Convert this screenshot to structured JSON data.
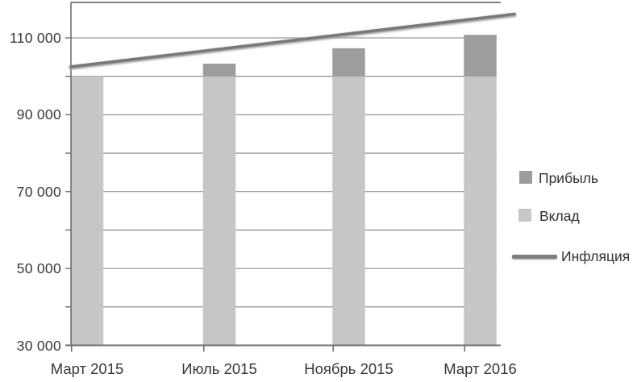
{
  "figure": {
    "background": "#ffffff",
    "text_color": "#383838",
    "grid_color": "#808080",
    "axis_color": "#6f6f6f"
  },
  "chart_data": {
    "type": "bar",
    "stacked": true,
    "title": "",
    "xlabel": "",
    "ylabel": "",
    "categories": [
      "Март 2015",
      "Июль 2015",
      "Ноябрь 2015",
      "Март 2016"
    ],
    "series": [
      {
        "key": "deposit",
        "name": "Вклад",
        "kind": "bar",
        "color": "#c6c6c6",
        "values": [
          100000,
          100000,
          100000,
          100000
        ]
      },
      {
        "key": "profit",
        "name": "Прибыль",
        "kind": "bar",
        "color": "#9d9d9d",
        "values": [
          0,
          3300,
          7300,
          10800
        ]
      },
      {
        "key": "inflation",
        "name": "Инфляция",
        "kind": "line",
        "color": "#787878",
        "values": [
          102900,
          107100,
          111100,
          115200
        ],
        "endpoint_values": [
          102500,
          116200
        ]
      }
    ],
    "ylim": [
      30000,
      120000
    ],
    "yticks": [
      30000,
      50000,
      70000,
      90000,
      110000
    ],
    "ytick_labels": [
      "30 000",
      "50 000",
      "70 000",
      "90 000",
      "110 000"
    ],
    "grid": true,
    "grid_step": 10000,
    "legend": {
      "position": "right",
      "items": [
        {
          "key": "profit",
          "label": "Прибыль",
          "swatch": "square",
          "color": "#9d9d9d"
        },
        {
          "key": "deposit",
          "label": "Вклад",
          "swatch": "square",
          "color": "#c7c7c7"
        },
        {
          "key": "inflation",
          "label": "Инфляция",
          "swatch": "line",
          "color": "#7e7e7e"
        }
      ]
    }
  }
}
